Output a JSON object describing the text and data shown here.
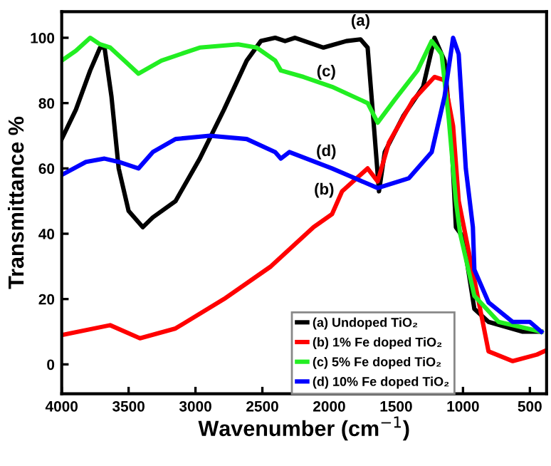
{
  "chart_data": {
    "type": "line",
    "xlabel": "Wavenumber (cm$^{−1}$)",
    "ylabel": "Transmittance %",
    "xlim": [
      4000,
      375
    ],
    "xticks": [
      4000,
      3500,
      3000,
      2500,
      2000,
      1500,
      1000,
      500
    ],
    "ylim": [
      -9,
      108
    ],
    "yticks": [
      0,
      20,
      40,
      60,
      80,
      100
    ],
    "grid": false,
    "legend": "bottom right",
    "marker": "none",
    "line_style": "solid",
    "series": [
      {
        "name": "(a) Undoped TiO₂",
        "color": "#000000",
        "x": [
          4000,
          3894,
          3787,
          3713,
          3680,
          3628,
          3574,
          3500,
          3415,
          3394,
          3319,
          3149,
          2968,
          2787,
          2617,
          2511,
          2404,
          2330,
          2255,
          2043,
          1872,
          1766,
          1713,
          1670,
          1628,
          1585,
          1447,
          1298,
          1213,
          1138,
          1085,
          1053,
          1000,
          915,
          809,
          553,
          415
        ],
        "values": [
          69,
          78,
          90,
          97,
          97,
          82,
          60,
          47,
          43,
          42,
          45,
          50,
          63,
          78,
          93,
          99,
          100,
          99,
          100,
          97,
          99,
          99.5,
          97,
          75,
          53,
          65,
          76,
          85,
          100,
          93,
          68,
          42,
          39,
          17,
          13,
          10,
          10
        ]
      },
      {
        "name": "(b) 1% Fe doped TiO₂",
        "color": "#ff0000",
        "x": [
          4000,
          3638,
          3415,
          3149,
          2787,
          2436,
          2117,
          1979,
          1904,
          1713,
          1638,
          1553,
          1372,
          1213,
          1138,
          1074,
          1032,
          872,
          809,
          628,
          447,
          394
        ],
        "values": [
          9,
          12,
          8,
          11,
          20,
          30,
          42,
          46,
          53,
          60,
          56,
          68,
          81,
          88,
          87,
          73,
          50,
          17,
          4,
          1,
          3,
          4
        ]
      },
      {
        "name": "(c) 5% Fe doped TiO₂",
        "color": "#22ee22",
        "x": [
          4000,
          3894,
          3787,
          3713,
          3638,
          3532,
          3426,
          3255,
          2968,
          2681,
          2543,
          2404,
          2362,
          2191,
          1979,
          1713,
          1638,
          1511,
          1340,
          1234,
          1160,
          1106,
          1053,
          1021,
          915,
          734,
          415
        ],
        "values": [
          93,
          96,
          100,
          98,
          97,
          93,
          89,
          93,
          97,
          98,
          97,
          93,
          90,
          88,
          85,
          80,
          74,
          81,
          90,
          99,
          95,
          75,
          50,
          40,
          21,
          13,
          10
        ]
      },
      {
        "name": "(d) 10% Fe doped TiO₂",
        "color": "#0000ff",
        "x": [
          4000,
          3819,
          3680,
          3574,
          3426,
          3319,
          3149,
          2894,
          2617,
          2404,
          2362,
          2298,
          1979,
          1638,
          1404,
          1234,
          1138,
          1074,
          1032,
          979,
          926,
          915,
          809,
          628,
          500,
          415
        ],
        "values": [
          58,
          62,
          63,
          62,
          60,
          65,
          69,
          70,
          69,
          65,
          63,
          65,
          60,
          54,
          57,
          65,
          82,
          100,
          95,
          60,
          42,
          29,
          19,
          13,
          13,
          10
        ]
      }
    ],
    "annotations": [
      {
        "text": "(a)",
        "x": 1766,
        "y": 99.5
      },
      {
        "text": "(b)",
        "x": 1979,
        "y": 46
      },
      {
        "text": "(c)",
        "x": 1904,
        "y": 84
      },
      {
        "text": "(d)",
        "x": 1904,
        "y": 59
      }
    ]
  }
}
